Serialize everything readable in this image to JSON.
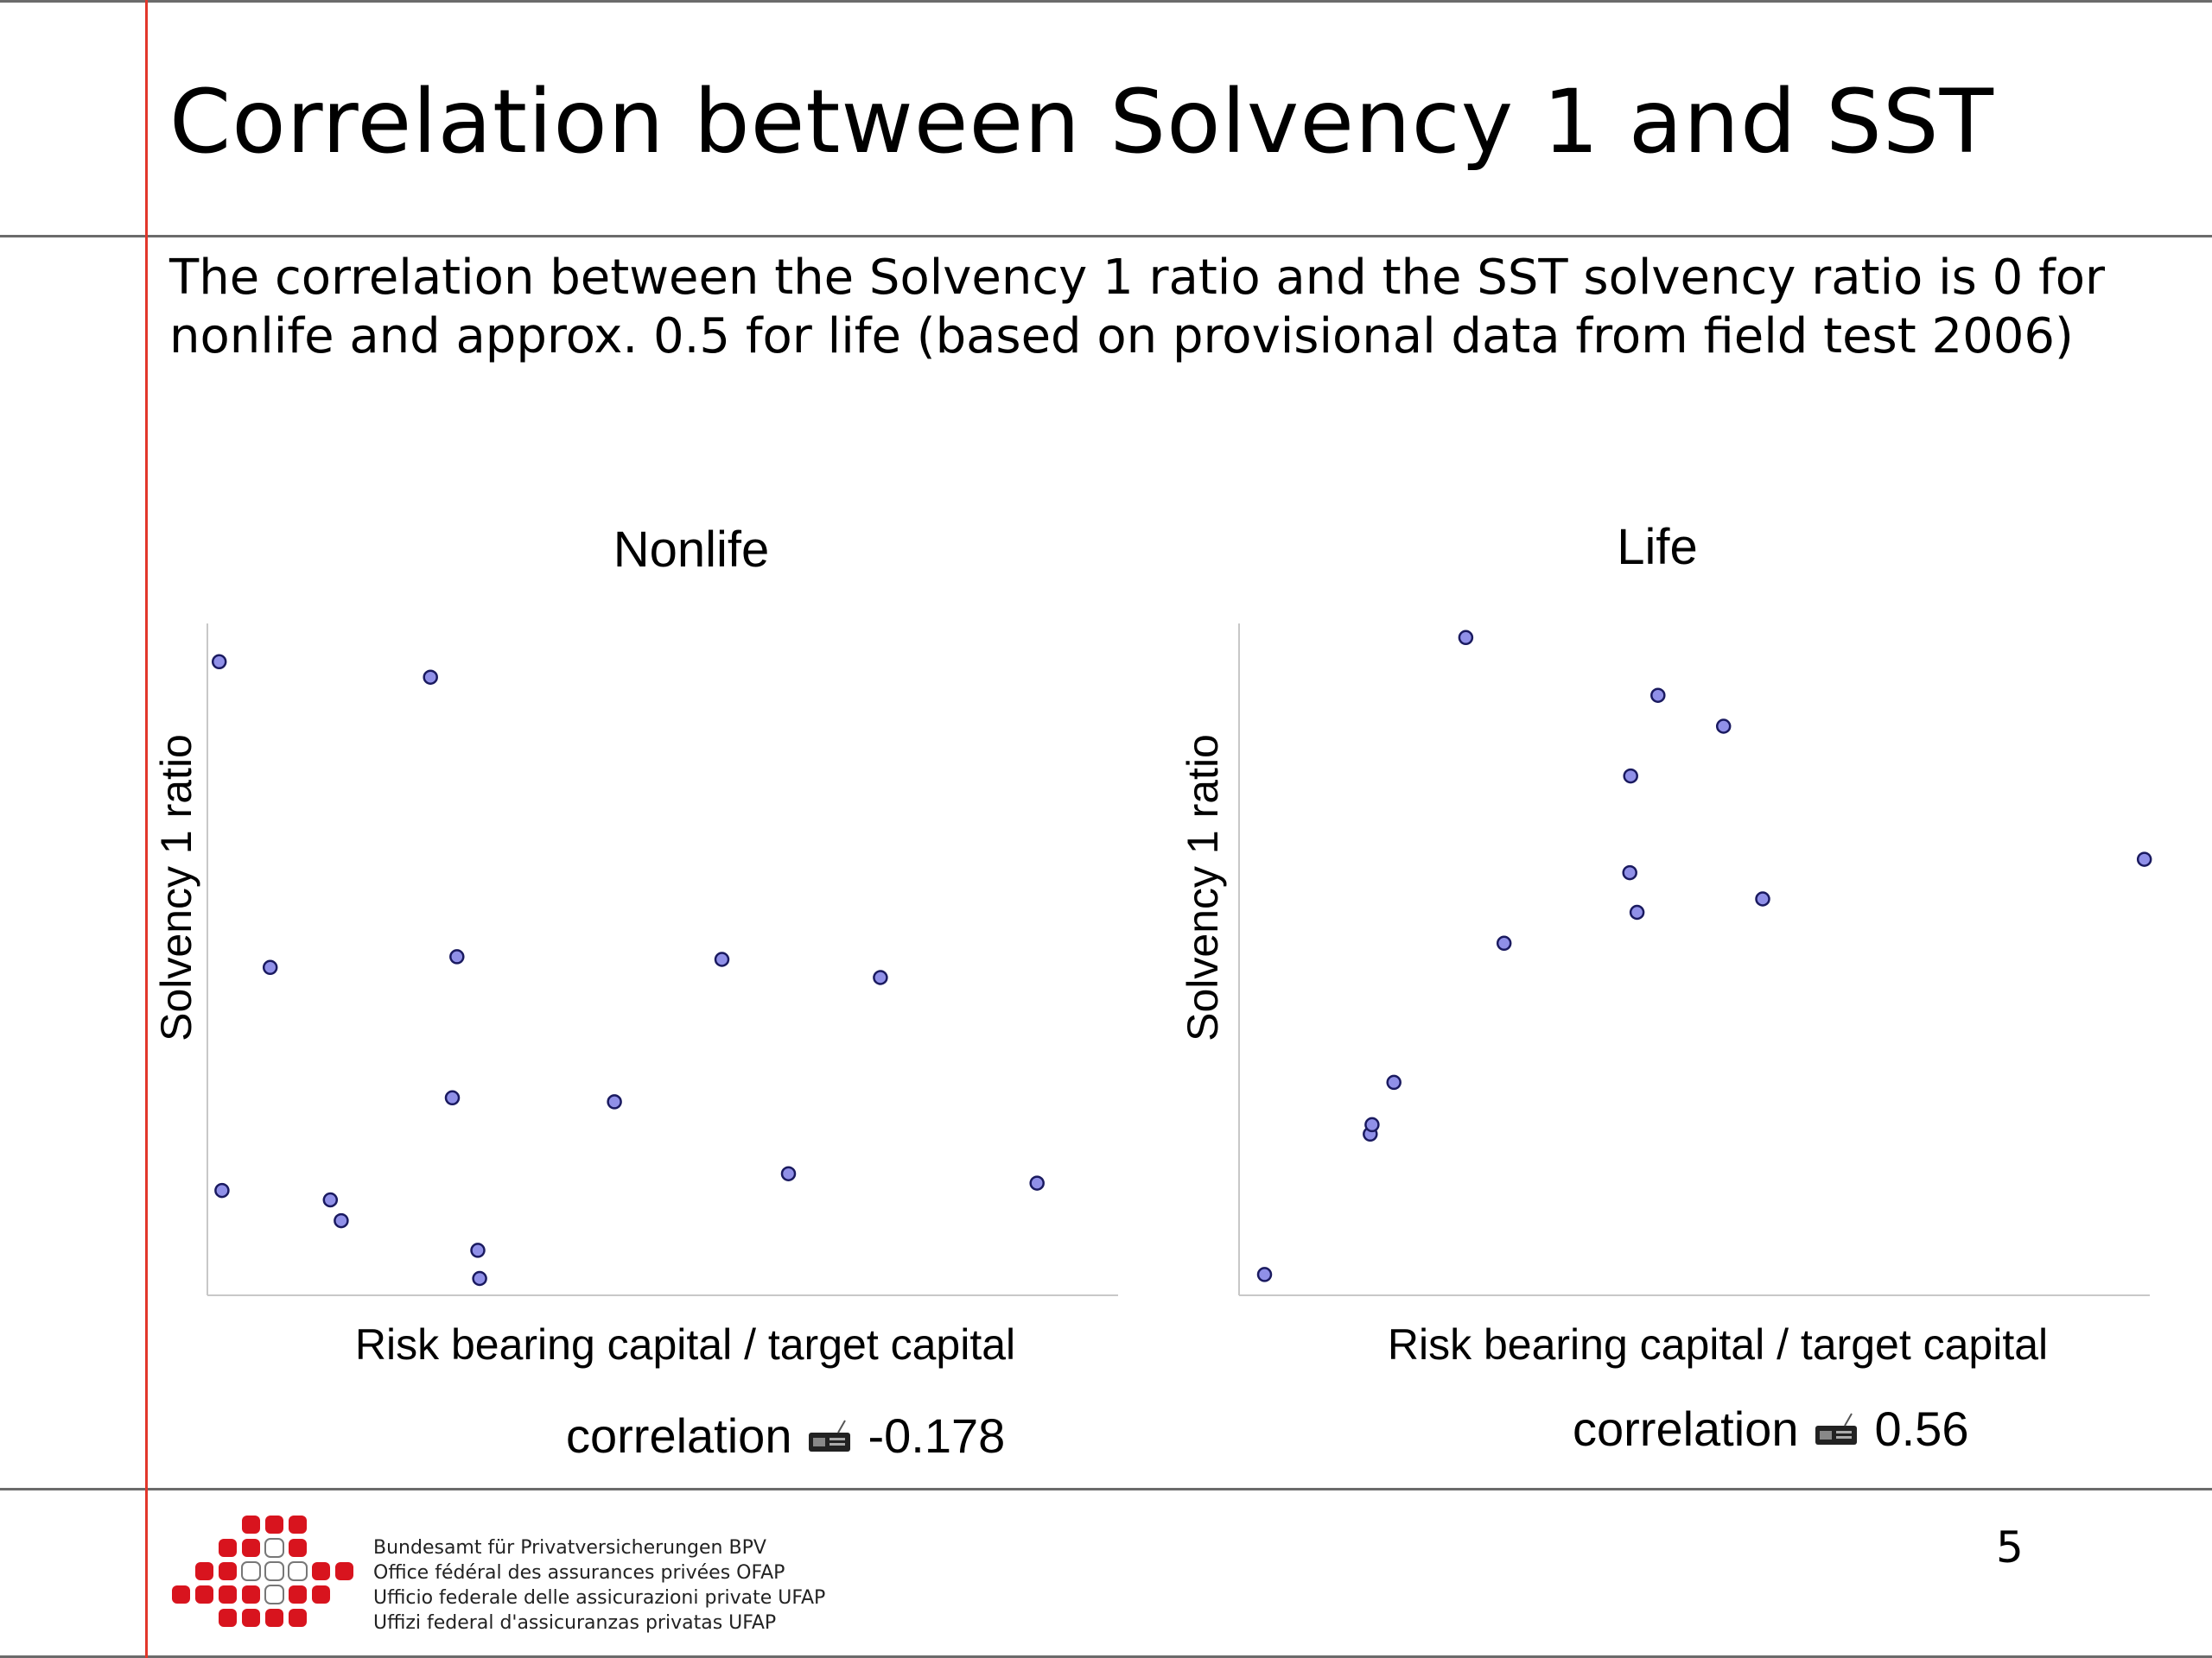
{
  "slide": {
    "title": "Correlation between Solvency 1 and SST",
    "subtitle": "The correlation between the Solvency 1 ratio and the SST solvency ratio is 0 for nonlife and approx. 0.5 for life (based on provisional data from field test 2006)",
    "page_number": "5",
    "colors": {
      "accent_line": "#e2372b",
      "rule_line": "#6b6b6b",
      "point_fill": "#9090e8",
      "point_stroke": "#1a1a60",
      "logo_red": "#d8141e"
    }
  },
  "chart_data": [
    {
      "type": "scatter",
      "title": "Nonlife",
      "xlabel": "Risk bearing capital / target capital",
      "ylabel": "Solvency 1 ratio",
      "correlation_label": "correlation",
      "correlation_value": "-0.178",
      "xlim": [
        0,
        100
      ],
      "ylim": [
        0,
        100
      ],
      "grid": false,
      "points": [
        {
          "x": 1.3,
          "y": 94.3
        },
        {
          "x": 24.5,
          "y": 92.0
        },
        {
          "x": 6.9,
          "y": 48.8
        },
        {
          "x": 27.4,
          "y": 50.4
        },
        {
          "x": 56.5,
          "y": 50.0
        },
        {
          "x": 73.9,
          "y": 47.3
        },
        {
          "x": 26.9,
          "y": 29.4
        },
        {
          "x": 44.7,
          "y": 28.8
        },
        {
          "x": 63.8,
          "y": 18.1
        },
        {
          "x": 91.1,
          "y": 16.7
        },
        {
          "x": 1.6,
          "y": 15.6
        },
        {
          "x": 13.5,
          "y": 14.2
        },
        {
          "x": 14.7,
          "y": 11.1
        },
        {
          "x": 29.7,
          "y": 6.7
        },
        {
          "x": 29.9,
          "y": 2.5
        }
      ]
    },
    {
      "type": "scatter",
      "title": "Life",
      "xlabel": "Risk bearing capital / target capital",
      "ylabel": "Solvency 1 ratio",
      "correlation_label": "correlation",
      "correlation_value": "0.56",
      "xlim": [
        0,
        100
      ],
      "ylim": [
        0,
        100
      ],
      "grid": false,
      "points": [
        {
          "x": 2.8,
          "y": 3.1
        },
        {
          "x": 14.4,
          "y": 24.0
        },
        {
          "x": 14.6,
          "y": 25.4
        },
        {
          "x": 17.0,
          "y": 31.7
        },
        {
          "x": 29.1,
          "y": 52.4
        },
        {
          "x": 42.9,
          "y": 62.9
        },
        {
          "x": 43.7,
          "y": 57.0
        },
        {
          "x": 24.9,
          "y": 97.9
        },
        {
          "x": 46.0,
          "y": 89.3
        },
        {
          "x": 53.2,
          "y": 84.7
        },
        {
          "x": 43.0,
          "y": 77.3
        },
        {
          "x": 57.5,
          "y": 59.0
        },
        {
          "x": 99.4,
          "y": 64.9
        }
      ]
    }
  ],
  "footer": {
    "org_lines": [
      "Bundesamt für Privatversicherungen BPV",
      "Office fédéral des assurances privées OFAP",
      "Ufficio federale delle assicurazioni private UFAP",
      "Uffizi federal d'assicuranzas privatas UFAP"
    ]
  }
}
